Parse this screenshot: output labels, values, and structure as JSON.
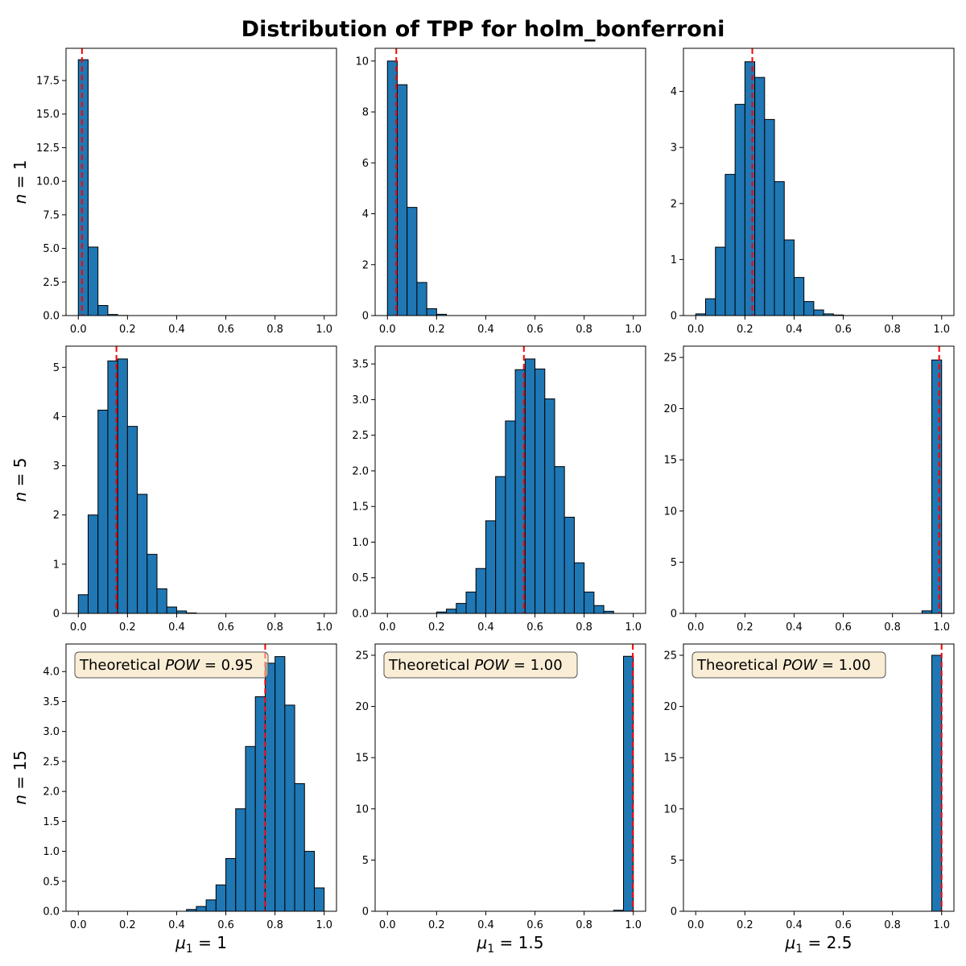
{
  "chart_data": {
    "type": "histogram-grid",
    "title": "Distribution of TPP for holm_bonferroni",
    "row_labels": [
      "n = 1",
      "n = 5",
      "n = 15"
    ],
    "col_labels": [
      "μ1 = 1",
      "μ1 = 1.5",
      "μ1 = 2.5"
    ],
    "xlim": [
      0,
      1
    ],
    "x_ticks": [
      0.0,
      0.2,
      0.4,
      0.6,
      0.8,
      1.0
    ],
    "bin_edges": [
      0.0,
      0.04,
      0.08,
      0.12,
      0.16,
      0.2,
      0.24,
      0.28,
      0.32,
      0.36,
      0.4,
      0.44,
      0.48,
      0.52,
      0.56,
      0.6,
      0.64,
      0.68,
      0.72,
      0.76,
      0.8,
      0.84,
      0.88,
      0.92,
      0.96,
      1.0
    ],
    "panels": [
      {
        "row": 0,
        "col": 0,
        "ylim": [
          0,
          19.9
        ],
        "y_ticks": [
          0.0,
          2.5,
          5.0,
          7.5,
          10.0,
          12.5,
          15.0,
          17.5
        ],
        "y_tick_labels": [
          "0.0",
          "2.5",
          "5.0",
          "7.5",
          "10.0",
          "12.5",
          "15.0",
          "17.5"
        ],
        "densities": [
          19.05,
          5.1,
          0.75,
          0.08,
          0.01,
          0,
          0,
          0,
          0,
          0,
          0,
          0,
          0,
          0,
          0,
          0,
          0,
          0,
          0,
          0,
          0,
          0,
          0,
          0,
          0
        ],
        "mean_tpp": 0.015,
        "annotation": ""
      },
      {
        "row": 0,
        "col": 1,
        "ylim": [
          0,
          10.5
        ],
        "y_ticks": [
          0,
          2,
          4,
          6,
          8,
          10
        ],
        "y_tick_labels": [
          "0",
          "2",
          "4",
          "6",
          "8",
          "10"
        ],
        "densities": [
          10.0,
          9.07,
          4.25,
          1.3,
          0.27,
          0.05,
          0,
          0,
          0,
          0,
          0,
          0,
          0,
          0,
          0,
          0,
          0,
          0,
          0,
          0,
          0,
          0,
          0,
          0,
          0
        ],
        "mean_tpp": 0.036,
        "annotation": ""
      },
      {
        "row": 0,
        "col": 2,
        "ylim": [
          0,
          4.77
        ],
        "y_ticks": [
          0,
          1,
          2,
          3,
          4
        ],
        "y_tick_labels": [
          "0",
          "1",
          "2",
          "3",
          "4"
        ],
        "densities": [
          0.03,
          0.3,
          1.22,
          2.52,
          3.77,
          4.53,
          4.25,
          3.5,
          2.39,
          1.35,
          0.68,
          0.25,
          0.1,
          0.03,
          0.01,
          0,
          0,
          0,
          0,
          0,
          0,
          0,
          0,
          0,
          0
        ],
        "mean_tpp": 0.23,
        "annotation": ""
      },
      {
        "row": 1,
        "col": 0,
        "ylim": [
          0,
          5.43
        ],
        "y_ticks": [
          0,
          1,
          2,
          3,
          4,
          5
        ],
        "y_tick_labels": [
          "0",
          "1",
          "2",
          "3",
          "4",
          "5"
        ],
        "densities": [
          0.38,
          2.0,
          4.13,
          5.13,
          5.17,
          3.8,
          2.42,
          1.2,
          0.5,
          0.13,
          0.05,
          0.01,
          0,
          0,
          0,
          0,
          0,
          0,
          0,
          0,
          0,
          0,
          0,
          0,
          0
        ],
        "mean_tpp": 0.155,
        "annotation": ""
      },
      {
        "row": 1,
        "col": 1,
        "ylim": [
          0,
          3.75
        ],
        "y_ticks": [
          0.0,
          0.5,
          1.0,
          1.5,
          2.0,
          2.5,
          3.0,
          3.5
        ],
        "y_tick_labels": [
          "0.0",
          "0.5",
          "1.0",
          "1.5",
          "2.0",
          "2.5",
          "3.0",
          "3.5"
        ],
        "densities": [
          0,
          0,
          0,
          0,
          0,
          0.02,
          0.06,
          0.14,
          0.3,
          0.63,
          1.3,
          1.92,
          2.7,
          3.42,
          3.57,
          3.43,
          3.01,
          2.06,
          1.35,
          0.71,
          0.3,
          0.11,
          0.03,
          0,
          0
        ],
        "mean_tpp": 0.555,
        "annotation": ""
      },
      {
        "row": 1,
        "col": 2,
        "ylim": [
          0,
          26.1
        ],
        "y_ticks": [
          0,
          5,
          10,
          15,
          20,
          25
        ],
        "y_tick_labels": [
          "0",
          "5",
          "10",
          "15",
          "20",
          "25"
        ],
        "densities": [
          0,
          0,
          0,
          0,
          0,
          0,
          0,
          0,
          0,
          0,
          0,
          0,
          0,
          0,
          0,
          0,
          0,
          0,
          0,
          0,
          0,
          0,
          0,
          0.25,
          24.75
        ],
        "mean_tpp": 0.99,
        "annotation": ""
      },
      {
        "row": 2,
        "col": 0,
        "ylim": [
          0,
          4.46
        ],
        "y_ticks": [
          0.0,
          0.5,
          1.0,
          1.5,
          2.0,
          2.5,
          3.0,
          3.5,
          4.0
        ],
        "y_tick_labels": [
          "0.0",
          "0.5",
          "1.0",
          "1.5",
          "2.0",
          "2.5",
          "3.0",
          "3.5",
          "4.0"
        ],
        "densities": [
          0,
          0,
          0,
          0,
          0,
          0,
          0,
          0,
          0,
          0,
          0,
          0.03,
          0.08,
          0.19,
          0.44,
          0.88,
          1.71,
          2.75,
          3.58,
          4.14,
          4.25,
          3.44,
          2.13,
          1.0,
          0.39
        ],
        "mean_tpp": 0.76,
        "annotation": "Theoretical POW = 0.95"
      },
      {
        "row": 2,
        "col": 1,
        "ylim": [
          0,
          26.1
        ],
        "y_ticks": [
          0,
          5,
          10,
          15,
          20,
          25
        ],
        "y_tick_labels": [
          "0",
          "5",
          "10",
          "15",
          "20",
          "25"
        ],
        "densities": [
          0,
          0,
          0,
          0,
          0,
          0,
          0,
          0,
          0,
          0,
          0,
          0,
          0,
          0,
          0,
          0,
          0,
          0,
          0,
          0,
          0,
          0,
          0,
          0.1,
          24.9
        ],
        "mean_tpp": 0.998,
        "annotation": "Theoretical POW = 1.00"
      },
      {
        "row": 2,
        "col": 2,
        "ylim": [
          0,
          26.1
        ],
        "y_ticks": [
          0,
          5,
          10,
          15,
          20,
          25
        ],
        "y_tick_labels": [
          "0",
          "5",
          "10",
          "15",
          "20",
          "25"
        ],
        "densities": [
          0,
          0,
          0,
          0,
          0,
          0,
          0,
          0,
          0,
          0,
          0,
          0,
          0,
          0,
          0,
          0,
          0,
          0,
          0,
          0,
          0,
          0,
          0,
          0,
          25.0
        ],
        "mean_tpp": 1.0,
        "annotation": "Theoretical POW = 1.00"
      }
    ],
    "colors": {
      "bar_fill": "#1f77b4",
      "bar_edge": "#000000",
      "mean_line": "#ff0000",
      "annotation_box": "#f5deb3"
    },
    "grid": false
  }
}
